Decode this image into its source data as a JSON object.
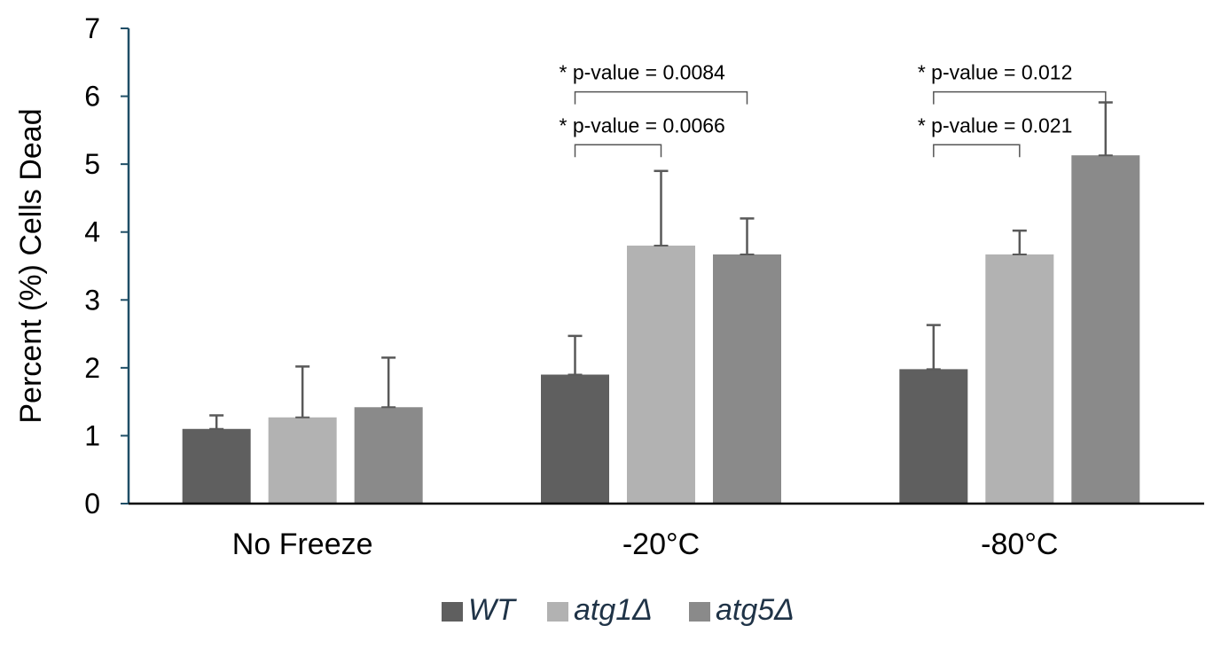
{
  "chart_data": {
    "type": "bar",
    "ylabel": "Percent (%) Cells Dead",
    "xlabel": "",
    "ylim": [
      0,
      7
    ],
    "yticks": [
      0,
      1,
      2,
      3,
      4,
      5,
      6,
      7
    ],
    "categories": [
      "No Freeze",
      "-20°C",
      "-80°C"
    ],
    "series": [
      {
        "name": "WT",
        "values": [
          1.1,
          1.9,
          1.98
        ],
        "errors": [
          0.2,
          0.57,
          0.65
        ],
        "color": "#5f5f5f"
      },
      {
        "name": "atg1Δ",
        "values": [
          1.27,
          3.8,
          3.67
        ],
        "errors": [
          0.75,
          1.1,
          0.35
        ],
        "color": "#b2b2b2"
      },
      {
        "name": "atg5Δ",
        "values": [
          1.42,
          3.67,
          5.13
        ],
        "errors": [
          0.73,
          0.53,
          0.78
        ],
        "color": "#8a8a8a"
      }
    ],
    "annotations": [
      {
        "text": "* p-value = 0.0084",
        "category": 1,
        "from_series": 0,
        "to_series": 2,
        "level": 6.0
      },
      {
        "text": "* p-value = 0.0066",
        "category": 1,
        "from_series": 0,
        "to_series": 1,
        "level": 5.22
      },
      {
        "text": "* p-value = 0.012",
        "category": 2,
        "from_series": 0,
        "to_series": 2,
        "level": 6.0
      },
      {
        "text": "* p-value = 0.021",
        "category": 2,
        "from_series": 0,
        "to_series": 1,
        "level": 5.22
      }
    ],
    "legend_position": "bottom-center",
    "axis_color": "#1f4e66"
  }
}
